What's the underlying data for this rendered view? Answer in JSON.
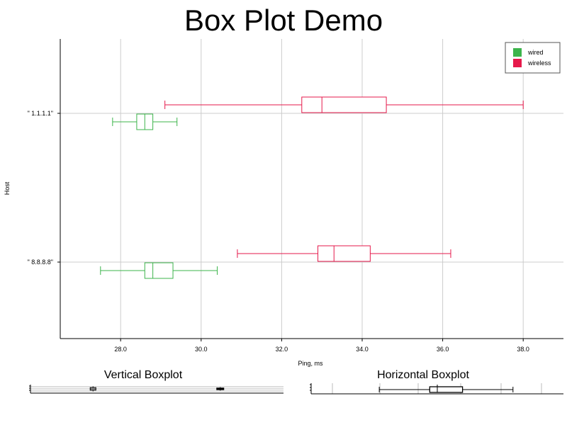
{
  "title": "Box Plot Demo",
  "chart_data": [
    {
      "type": "boxplot",
      "orientation": "horizontal",
      "title": "Box Plot Demo",
      "xlabel": "Ping, ms",
      "ylabel": "Host",
      "xlim": [
        26.5,
        39.0
      ],
      "x_ticks": [
        "28.0",
        "30.0",
        "32.0",
        "34.0",
        "36.0",
        "38.0"
      ],
      "x_tick_values": [
        28,
        30,
        32,
        34,
        36,
        38
      ],
      "categories": [
        "\" 1.1.1.1\"",
        "\" 8.8.8.8\""
      ],
      "grid": true,
      "legend": "top-right",
      "series": [
        {
          "name": "wired",
          "color": "#3cb44b",
          "boxes": [
            {
              "category": "\" 1.1.1.1\"",
              "whisker_low": 27.8,
              "q1": 28.4,
              "median": 28.6,
              "q3": 28.8,
              "whisker_high": 29.4
            },
            {
              "category": "\" 8.8.8.8\"",
              "whisker_low": 27.5,
              "q1": 28.6,
              "median": 28.8,
              "q3": 29.3,
              "whisker_high": 30.4
            }
          ]
        },
        {
          "name": "wireless",
          "color": "#e6194b",
          "boxes": [
            {
              "category": "\" 1.1.1.1\"",
              "whisker_low": 29.1,
              "q1": 32.5,
              "median": 33.0,
              "q3": 34.6,
              "whisker_high": 38.0
            },
            {
              "category": "\" 8.8.8.8\"",
              "whisker_low": 30.9,
              "q1": 32.9,
              "median": 33.3,
              "q3": 34.2,
              "whisker_high": 36.2
            }
          ]
        }
      ]
    },
    {
      "type": "boxplot",
      "orientation": "vertical",
      "title": "Vertical Boxplot",
      "grid": true,
      "boxes": [
        {
          "x": 0.25,
          "whisker_low": 0.2,
          "q1": 0.35,
          "median": 0.5,
          "q3": 0.65,
          "whisker_high": 0.8
        },
        {
          "x": 0.75,
          "whisker_low": 0.3,
          "q1": 0.4,
          "median": 0.5,
          "q3": 0.6,
          "whisker_high": 0.7
        }
      ]
    },
    {
      "type": "boxplot",
      "orientation": "horizontal",
      "title": "Horizontal Boxplot",
      "grid": true,
      "boxes": [
        {
          "whisker_low": 0.27,
          "q1": 0.47,
          "median": 0.5,
          "q3": 0.6,
          "whisker_high": 0.8
        }
      ]
    }
  ]
}
